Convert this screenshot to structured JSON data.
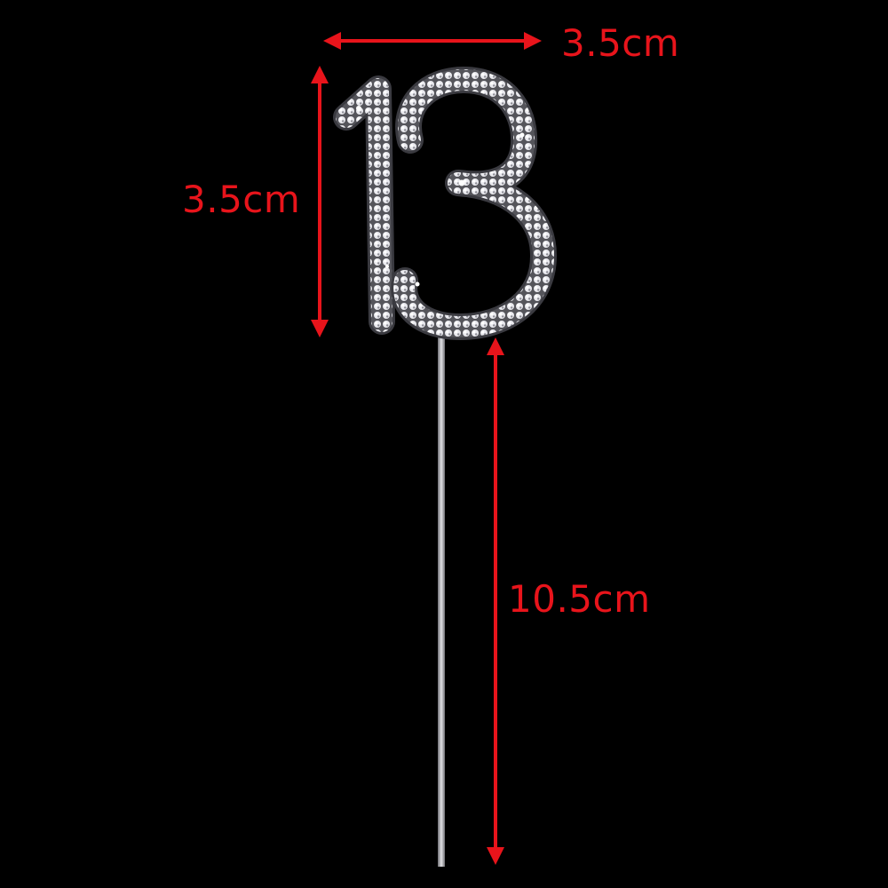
{
  "product": {
    "number_text": "13",
    "description": "rhinestone number cake topper on stick"
  },
  "dimensions": {
    "width_label": "3.5cm",
    "height_label": "3.5cm",
    "stick_label": "10.5cm"
  },
  "colors": {
    "background": "#000000",
    "annotation": "#e8141b",
    "rhinestone": "#e6e6ea",
    "stick": "#b9b9bd"
  }
}
